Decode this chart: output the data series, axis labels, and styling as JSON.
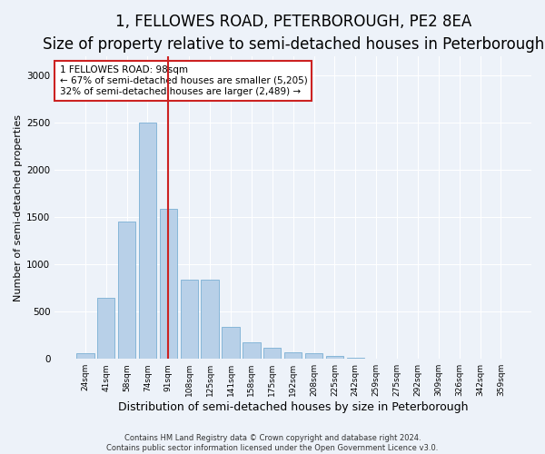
{
  "title": "1, FELLOWES ROAD, PETERBOROUGH, PE2 8EA",
  "subtitle": "Size of property relative to semi-detached houses in Peterborough",
  "xlabel": "Distribution of semi-detached houses by size in Peterborough",
  "ylabel": "Number of semi-detached properties",
  "categories": [
    "24sqm",
    "41sqm",
    "58sqm",
    "74sqm",
    "91sqm",
    "108sqm",
    "125sqm",
    "141sqm",
    "158sqm",
    "175sqm",
    "192sqm",
    "208sqm",
    "225sqm",
    "242sqm",
    "259sqm",
    "275sqm",
    "292sqm",
    "309sqm",
    "326sqm",
    "342sqm",
    "359sqm"
  ],
  "values": [
    55,
    650,
    1450,
    2500,
    1590,
    840,
    840,
    340,
    175,
    120,
    70,
    60,
    30,
    10,
    5,
    5,
    3,
    2,
    2,
    1,
    1
  ],
  "bar_color": "#b8d0e8",
  "bar_edge_color": "#7aafd4",
  "highlight_bar_index": 4,
  "highlight_bar_color": "#b8d0e8",
  "highlight_bar_edge_color": "#7aafd4",
  "vline_color": "#cc2222",
  "annotation_title": "1 FELLOWES ROAD: 98sqm",
  "annotation_line1": "← 67% of semi-detached houses are smaller (5,205)",
  "annotation_line2": "32% of semi-detached houses are larger (2,489) →",
  "ylim": [
    0,
    3200
  ],
  "yticks": [
    0,
    500,
    1000,
    1500,
    2000,
    2500,
    3000
  ],
  "title_fontsize": 12,
  "subtitle_fontsize": 10,
  "xlabel_fontsize": 9,
  "ylabel_fontsize": 8,
  "footer_line1": "Contains HM Land Registry data © Crown copyright and database right 2024.",
  "footer_line2": "Contains public sector information licensed under the Open Government Licence v3.0.",
  "background_color": "#edf2f9",
  "plot_bg_color": "#edf2f9"
}
